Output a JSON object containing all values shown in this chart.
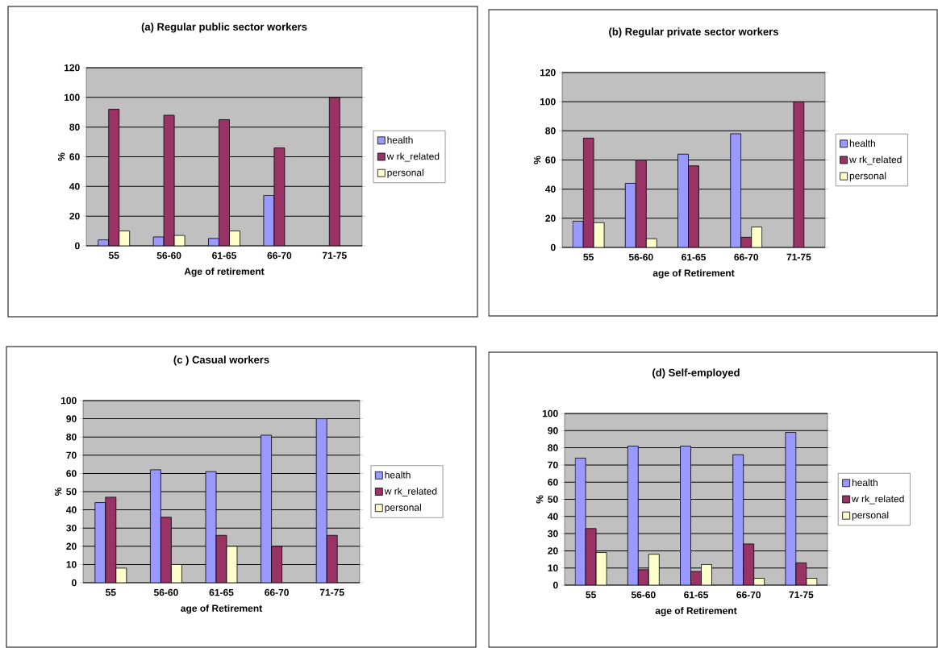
{
  "chart_data": [
    {
      "type": "bar",
      "title": "(a) Regular public sector workers",
      "xlabel": "Age of retirement",
      "ylabel": "%",
      "categories": [
        "55",
        "56-60",
        "61-65",
        "66-70",
        "71-75"
      ],
      "ylim": [
        0,
        120
      ],
      "yticks": [
        0,
        20,
        40,
        60,
        80,
        100,
        120
      ],
      "grid": "y",
      "legend": "right",
      "series": [
        {
          "name": "health",
          "color": "#9999ff",
          "values": [
            4,
            6,
            5,
            34,
            null
          ]
        },
        {
          "name": "w rk_related",
          "color": "#993366",
          "values": [
            92,
            88,
            85,
            66,
            100
          ]
        },
        {
          "name": "personal",
          "color": "#ffffcc",
          "values": [
            10,
            7,
            10,
            null,
            null
          ]
        }
      ]
    },
    {
      "type": "bar",
      "title": "(b) Regular private sector workers",
      "xlabel": "age of Retirement",
      "ylabel": "%",
      "categories": [
        "55",
        "56-60",
        "61-65",
        "66-70",
        "71-75"
      ],
      "ylim": [
        0,
        120
      ],
      "yticks": [
        0,
        20,
        40,
        60,
        80,
        100,
        120
      ],
      "grid": "y",
      "legend": "right",
      "series": [
        {
          "name": "health",
          "color": "#9999ff",
          "values": [
            18,
            44,
            64,
            78,
            null
          ]
        },
        {
          "name": "w rk_related",
          "color": "#993366",
          "values": [
            75,
            60,
            56,
            7,
            100
          ]
        },
        {
          "name": "personal",
          "color": "#ffffcc",
          "values": [
            17,
            6,
            null,
            14,
            null
          ]
        }
      ]
    },
    {
      "type": "bar",
      "title": "(c ) Casual workers",
      "xlabel": "age of Retirement",
      "ylabel": "%",
      "categories": [
        "55",
        "56-60",
        "61-65",
        "66-70",
        "71-75"
      ],
      "ylim": [
        0,
        100
      ],
      "yticks": [
        0,
        10,
        20,
        30,
        40,
        50,
        60,
        70,
        80,
        90,
        100
      ],
      "grid": "y",
      "legend": "right",
      "series": [
        {
          "name": "health",
          "color": "#9999ff",
          "values": [
            44,
            62,
            61,
            81,
            90
          ]
        },
        {
          "name": "w rk_related",
          "color": "#993366",
          "values": [
            47,
            36,
            26,
            20,
            26
          ]
        },
        {
          "name": "personal",
          "color": "#ffffcc",
          "values": [
            8,
            10,
            20,
            null,
            null
          ]
        }
      ]
    },
    {
      "type": "bar",
      "title": "(d) Self-employed",
      "xlabel": "age of Retirement",
      "ylabel": "%",
      "categories": [
        "55",
        "56-60",
        "61-65",
        "66-70",
        "71-75"
      ],
      "ylim": [
        0,
        100
      ],
      "yticks": [
        0,
        10,
        20,
        30,
        40,
        50,
        60,
        70,
        80,
        90,
        100
      ],
      "grid": "y",
      "legend": "right",
      "series": [
        {
          "name": "health",
          "color": "#9999ff",
          "values": [
            74,
            81,
            81,
            76,
            89
          ]
        },
        {
          "name": "w rk_related",
          "color": "#993366",
          "values": [
            33,
            9,
            8,
            24,
            13
          ]
        },
        {
          "name": "personal",
          "color": "#ffffcc",
          "values": [
            19,
            18,
            12,
            4,
            4
          ]
        }
      ]
    }
  ]
}
